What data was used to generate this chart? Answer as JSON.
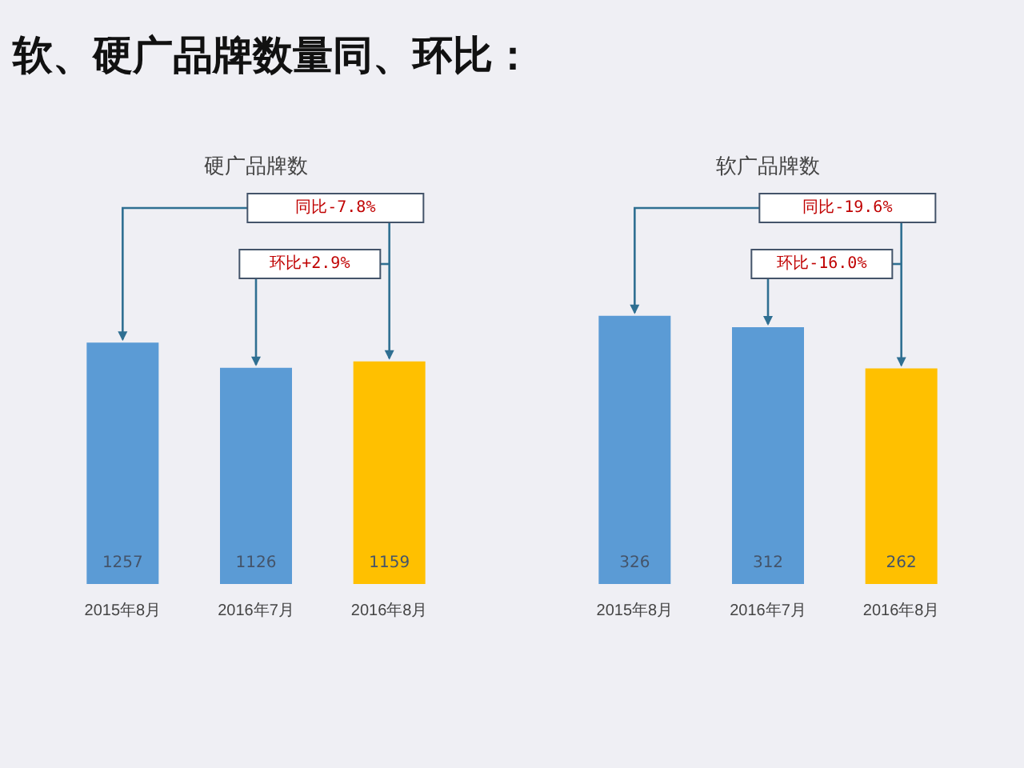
{
  "chart_data": [
    {
      "type": "bar",
      "title": "软、硬广品牌数量同、环比：",
      "subtitle": "硬广品牌数",
      "categories": [
        "2015年8月",
        "2016年7月",
        "2016年8月"
      ],
      "values": [
        1257,
        1126,
        1159
      ],
      "colors": [
        "#5b9bd5",
        "#5b9bd5",
        "#ffc000"
      ],
      "data_labels": true,
      "annotations": [
        "同比-7.8%",
        "环比+2.9%"
      ]
    },
    {
      "type": "bar",
      "title": "软广品牌数",
      "categories": [
        "2015年8月",
        "2016年7月",
        "2016年8月"
      ],
      "values": [
        326,
        312,
        262
      ],
      "colors": [
        "#5b9bd5",
        "#5b9bd5",
        "#ffc000"
      ],
      "data_labels": true,
      "annotations": [
        "同比-19.6%",
        "环比-16.0%"
      ]
    }
  ]
}
